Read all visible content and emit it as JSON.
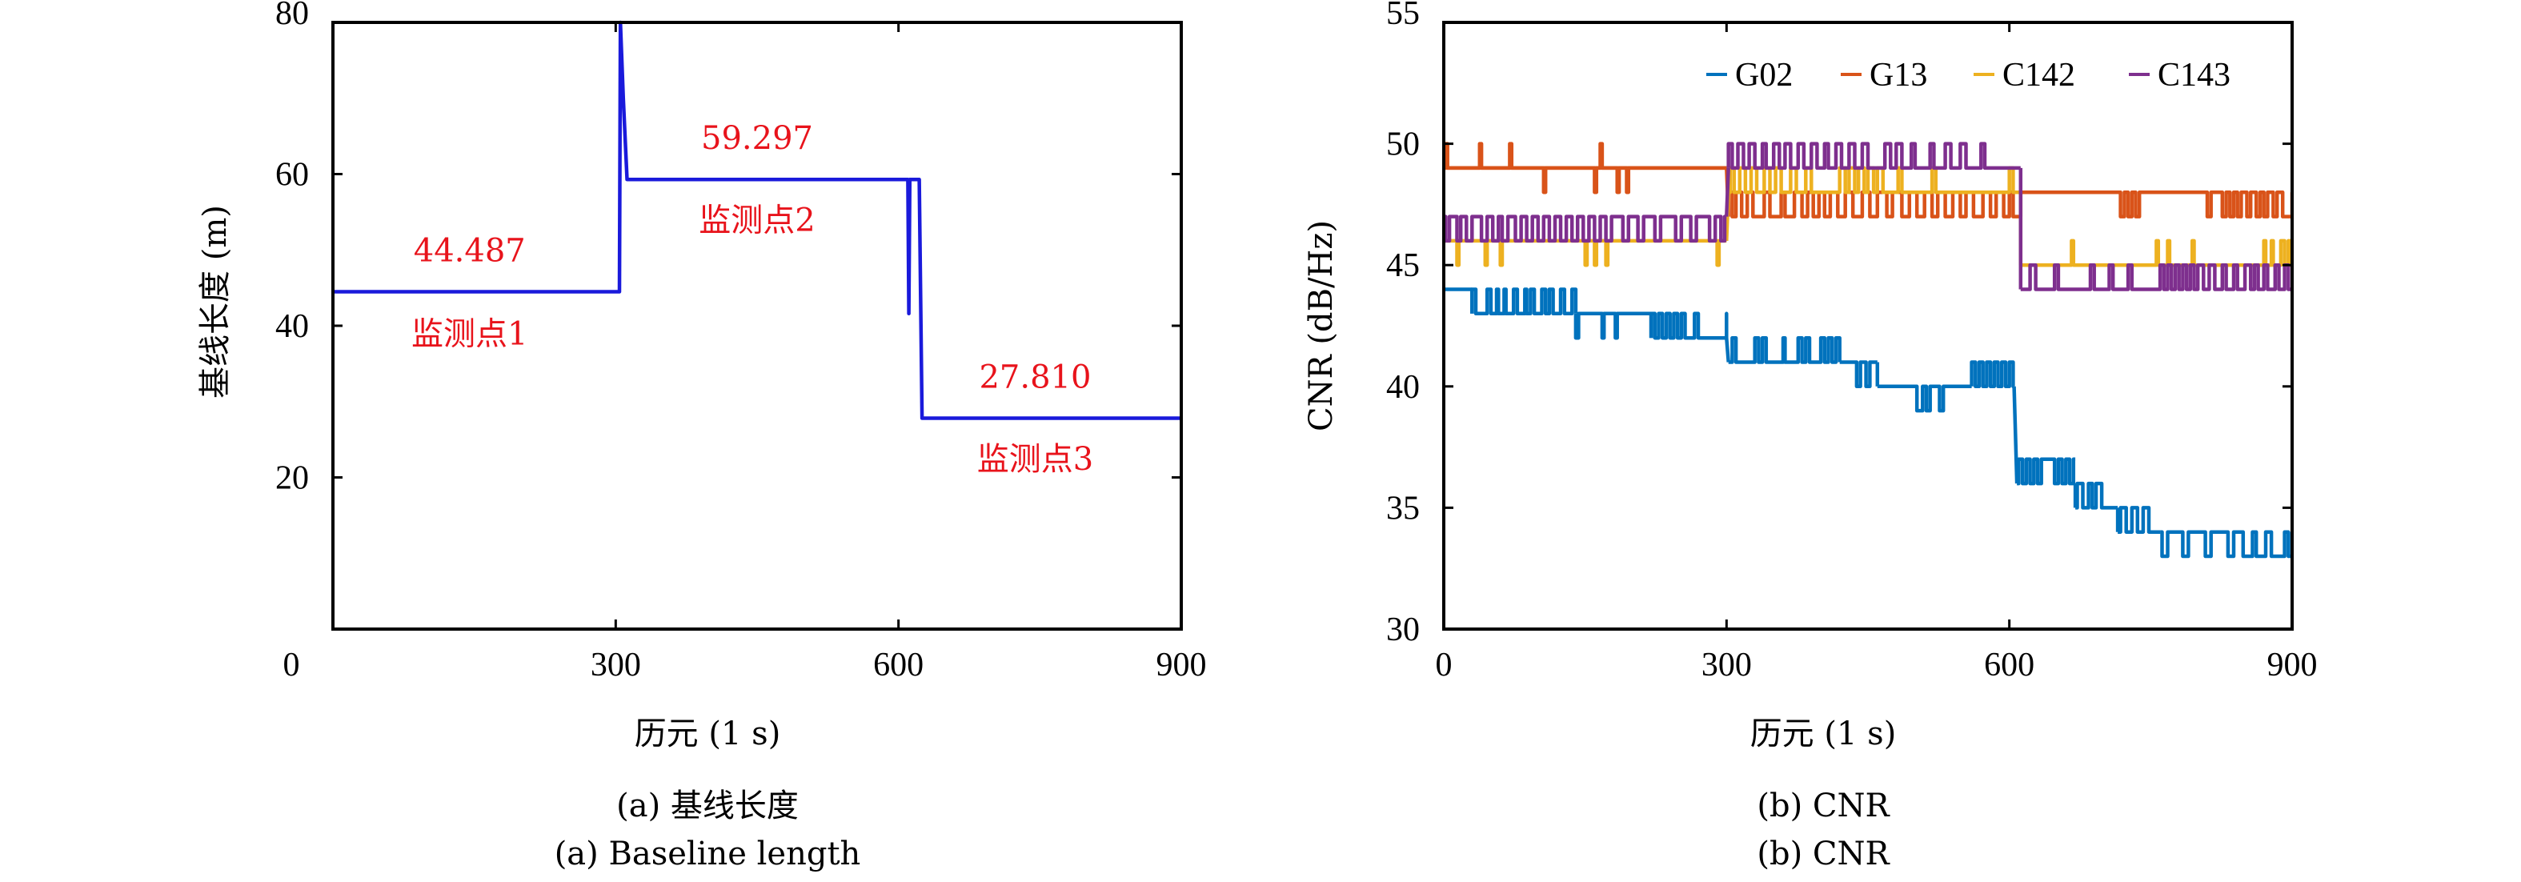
{
  "chart_data": [
    {
      "type": "line",
      "panel": "a",
      "xlabel": "历元 (1 s)",
      "ylabel": "基线长度 (m)",
      "xlim": [
        0,
        900
      ],
      "ylim": [
        0,
        80
      ],
      "xticks": [
        0,
        300,
        600,
        900
      ],
      "xtick_labels": [
        "0",
        "300",
        "600",
        "900"
      ],
      "yticks": [
        20,
        40,
        60,
        80
      ],
      "ytick_labels": [
        "20",
        "40",
        "60",
        "80"
      ],
      "grid": false,
      "caption_cn": "(a) 基线长度",
      "caption_en": "(a) Baseline length",
      "series": [
        {
          "name": "baseline",
          "color": "#1a1adb",
          "x": [
            0,
            304,
            305,
            308,
            312,
            610,
            611,
            612,
            615,
            622,
            625,
            900
          ],
          "y": [
            44.487,
            44.487,
            80,
            70,
            59.297,
            59.297,
            41.6,
            59.297,
            59.297,
            59.297,
            27.81,
            27.81
          ]
        }
      ],
      "annotations": [
        {
          "text": "44.487",
          "x": 145,
          "y": 48.5
        },
        {
          "text": "监测点1",
          "x": 145,
          "y": 37.5
        },
        {
          "text": "59.297",
          "x": 450,
          "y": 63.3
        },
        {
          "text": "监测点2",
          "x": 450,
          "y": 52.5
        },
        {
          "text": "27.810",
          "x": 745,
          "y": 31.8
        },
        {
          "text": "监测点3",
          "x": 745,
          "y": 21.0
        }
      ]
    },
    {
      "type": "line",
      "panel": "b",
      "xlabel": "历元 (1 s)",
      "ylabel": "CNR (dB/Hz)",
      "xlim": [
        0,
        900
      ],
      "ylim": [
        30,
        55
      ],
      "xticks": [
        0,
        300,
        600,
        900
      ],
      "xtick_labels": [
        "0",
        "300",
        "600",
        "900"
      ],
      "yticks": [
        30,
        35,
        40,
        45,
        50,
        55
      ],
      "ytick_labels": [
        "30",
        "35",
        "40",
        "45",
        "50",
        "55"
      ],
      "grid": false,
      "legend_position": "top-right",
      "caption_cn": "(b) CNR",
      "caption_en": "(b) CNR",
      "series": [
        {
          "name": "G02",
          "color": "#0072BD",
          "segments": [
            {
              "x0": 0,
              "x1": 30,
              "base": 44,
              "alt": 44,
              "toggles": []
            },
            {
              "x0": 30,
              "x1": 140,
              "base": 43,
              "alt": 44,
              "toggles": [
                30,
                34,
                46,
                50,
                56,
                58,
                64,
                66,
                74,
                78,
                86,
                88,
                92,
                96,
                104,
                108,
                112,
                116,
                124,
                128,
                136,
                140
              ]
            },
            {
              "x0": 140,
              "x1": 220,
              "base": 43,
              "alt": 42,
              "toggles": [
                140,
                143,
                168,
                170,
                182,
                184
              ]
            },
            {
              "x0": 220,
              "x1": 300,
              "base": 42,
              "alt": 43,
              "toggles": [
                220,
                224,
                228,
                232,
                236,
                240,
                244,
                248,
                252,
                256,
                266,
                270,
                300,
                302
              ]
            },
            {
              "x0": 302,
              "x1": 420,
              "base": 41,
              "alt": 42,
              "toggles": [
                306,
                310,
                330,
                334,
                338,
                342,
                360,
                362,
                376,
                380,
                384,
                388,
                400,
                404,
                408,
                412,
                416,
                420
              ]
            },
            {
              "x0": 420,
              "x1": 460,
              "base": 41,
              "alt": 40,
              "toggles": [
                438,
                442,
                448,
                452
              ]
            },
            {
              "x0": 460,
              "x1": 560,
              "base": 40,
              "alt": 39,
              "toggles": [
                502,
                508,
                512,
                516,
                526,
                530
              ]
            },
            {
              "x0": 560,
              "x1": 605,
              "base": 40,
              "alt": 41,
              "toggles": [
                560,
                564,
                568,
                572,
                576,
                580,
                584,
                588,
                592,
                596,
                600,
                604
              ]
            },
            {
              "x0": 608,
              "x1": 670,
              "base": 36,
              "alt": 37,
              "toggles": [
                610,
                614,
                618,
                622,
                626,
                630,
                634,
                648,
                652,
                656,
                660,
                664,
                668
              ]
            },
            {
              "x0": 670,
              "x1": 715,
              "base": 35,
              "alt": 36,
              "toggles": [
                672,
                678,
                684,
                688,
                692,
                698
              ]
            },
            {
              "x0": 715,
              "x1": 760,
              "base": 34,
              "alt": 35,
              "toggles": [
                718,
                724,
                730,
                736,
                742,
                748
              ]
            },
            {
              "x0": 760,
              "x1": 900,
              "base": 34,
              "alt": 33,
              "toggles": [
                762,
                768,
                784,
                790,
                808,
                814,
                832,
                838,
                848,
                858,
                862,
                872,
                878,
                892,
                896,
                900
              ]
            }
          ]
        },
        {
          "name": "G13",
          "color": "#D95319",
          "segments": [
            {
              "x0": 0,
              "x1": 300,
              "base": 49,
              "alt": 50,
              "toggles": [
                2,
                4,
                38,
                40,
                70,
                72,
                166,
                168
              ]
            },
            {
              "x0": 0,
              "x1": 300,
              "base": 49,
              "alt": 48,
              "toggles": [
                106,
                108,
                160,
                162,
                184,
                186,
                194,
                196
              ]
            },
            {
              "x0": 302,
              "x1": 612,
              "base": 47,
              "alt": 48,
              "toggles": [
                302,
                306,
                310,
                316,
                322,
                328,
                340,
                346,
                358,
                362,
                372,
                380,
                386,
                392,
                398,
                404,
                410,
                418,
                426,
                434,
                444,
                452,
                460,
                470,
                476,
                486,
                494,
                502,
                510,
                518,
                524,
                532,
                540,
                548,
                554,
                562,
                572,
                580,
                586,
                594,
                600,
                604
              ]
            },
            {
              "x0": 612,
              "x1": 900,
              "base": 48,
              "alt": 47,
              "toggles": [
                718,
                722,
                726,
                730,
                734,
                738,
                810,
                814,
                826,
                830,
                834,
                838,
                842,
                846,
                852,
                856,
                862,
                866,
                870,
                874,
                880,
                884,
                890,
                900
              ]
            }
          ]
        },
        {
          "name": "C142",
          "color": "#EDB120",
          "segments": [
            {
              "x0": 0,
              "x1": 300,
              "base": 46,
              "alt": 45,
              "toggles": [
                14,
                16,
                44,
                46,
                60,
                62,
                150,
                152,
                160,
                162,
                172,
                174,
                290,
                292
              ]
            },
            {
              "x0": 302,
              "x1": 612,
              "base": 48,
              "alt": 49,
              "toggles": [
                304,
                308,
                314,
                320,
                326,
                332,
                340,
                346,
                352,
                358,
                368,
                374,
                384,
                390,
                420,
                426,
                430,
                436,
                440,
                446,
                450,
                456,
                460,
                466,
                482,
                486,
                518,
                522,
                600,
                604
              ]
            },
            {
              "x0": 612,
              "x1": 900,
              "base": 45,
              "alt": 46,
              "toggles": [
                666,
                668,
                756,
                758,
                768,
                770,
                794,
                796,
                870,
                872,
                878,
                880,
                888,
                892,
                896,
                898
              ]
            }
          ]
        },
        {
          "name": "C143",
          "color": "#7E2F8E",
          "segments": [
            {
              "x0": 0,
              "x1": 300,
              "base": 47,
              "alt": 46,
              "toggles": [
                2,
                6,
                14,
                18,
                24,
                30,
                40,
                46,
                52,
                58,
                62,
                68,
                76,
                82,
                88,
                94,
                100,
                106,
                112,
                118,
                124,
                130,
                136,
                142,
                148,
                154,
                160,
                166,
                172,
                178,
                190,
                196,
                206,
                212,
                224,
                230,
                246,
                252,
                262,
                268,
                282,
                288,
                294,
                298
              ]
            },
            {
              "x0": 302,
              "x1": 612,
              "base": 49,
              "alt": 50,
              "toggles": [
                302,
                306,
                312,
                318,
                324,
                330,
                338,
                342,
                350,
                356,
                362,
                368,
                376,
                382,
                390,
                396,
                404,
                408,
                416,
                422,
                430,
                436,
                444,
                450,
                468,
                474,
                480,
                486,
                496,
                500,
                516,
                520,
                532,
                538,
                548,
                554,
                570,
                574
              ]
            },
            {
              "x0": 612,
              "x1": 900,
              "base": 44,
              "alt": 45,
              "toggles": [
                622,
                628,
                648,
                652,
                686,
                690,
                706,
                710,
                726,
                730,
                760,
                764,
                768,
                772,
                776,
                780,
                784,
                788,
                792,
                796,
                800,
                806,
                812,
                818,
                826,
                830,
                838,
                842,
                850,
                856,
                860,
                864,
                870,
                874,
                882,
                886,
                892,
                896
              ]
            }
          ]
        }
      ]
    }
  ]
}
